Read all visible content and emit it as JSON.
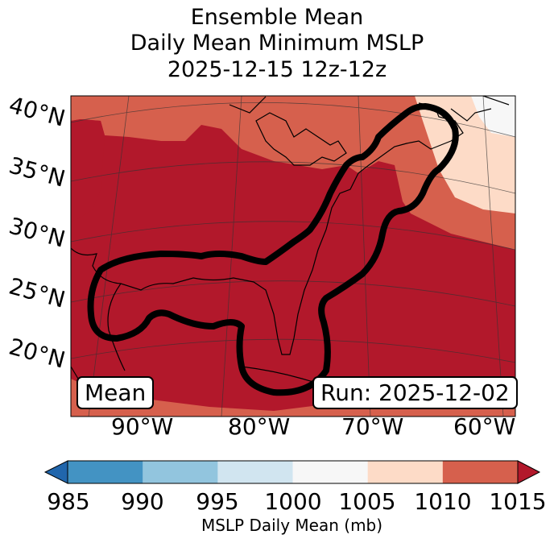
{
  "title": {
    "line1": "Ensemble Mean",
    "line2": "Daily Mean Minimum MSLP",
    "line3": "2025-12-15 12z-12z"
  },
  "map": {
    "lat_labels": [
      "40°N",
      "35°N",
      "30°N",
      "25°N",
      "20°N"
    ],
    "lon_labels": [
      "90°W",
      "80°W",
      "70°W",
      "60°W"
    ],
    "label_left": "Mean",
    "label_right": "Run: 2025-12-02",
    "field_colors": {
      "band_1005_1010": "#fddbc7",
      "band_1010_1015": "#d6604d",
      "band_above_1015": "#b2182b",
      "band_1000_1005": "#f7f7f7",
      "contour": "#000000",
      "coast": "#000000"
    }
  },
  "colorbar": {
    "ticks": [
      "985",
      "990",
      "995",
      "1000",
      "1005",
      "1010",
      "1015"
    ],
    "label": "MSLP Daily Mean (mb)",
    "colors": [
      "#2166ac",
      "#4393c3",
      "#92c5de",
      "#d1e5f0",
      "#f7f7f7",
      "#fddbc7",
      "#d6604d",
      "#b2182b"
    ]
  }
}
